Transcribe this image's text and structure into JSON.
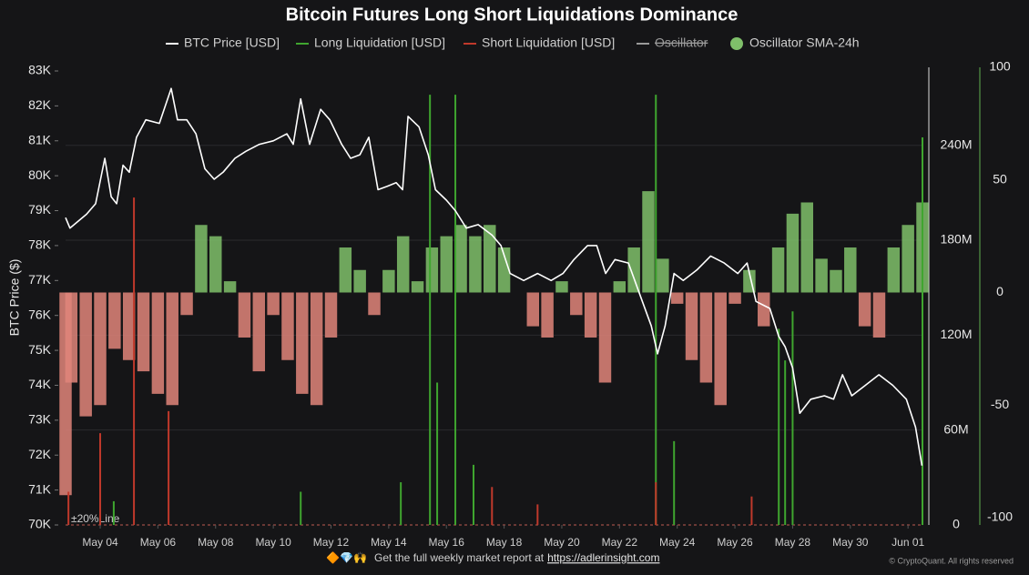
{
  "chart_data": {
    "type": "combo",
    "title": "Bitcoin Futures Long Short Liquidations Dominance",
    "y_label": "BTC Price ($)",
    "line_label": "±20%Line",
    "grid": true,
    "xlim": [
      2.8,
      32.5
    ],
    "xticks": [
      {
        "value": 4,
        "label": "May 04"
      },
      {
        "value": 6,
        "label": "May 06"
      },
      {
        "value": 8,
        "label": "May 08"
      },
      {
        "value": 10,
        "label": "May 10"
      },
      {
        "value": 12,
        "label": "May 12"
      },
      {
        "value": 14,
        "label": "May 14"
      },
      {
        "value": 16,
        "label": "May 16"
      },
      {
        "value": 18,
        "label": "May 18"
      },
      {
        "value": 20,
        "label": "May 20"
      },
      {
        "value": 22,
        "label": "May 22"
      },
      {
        "value": 24,
        "label": "May 24"
      },
      {
        "value": 26,
        "label": "May 26"
      },
      {
        "value": 28,
        "label": "May 28"
      },
      {
        "value": 30,
        "label": "May 30"
      },
      {
        "value": 32,
        "label": "Jun 01"
      }
    ],
    "ylim": [
      70000,
      83000
    ],
    "yticks": [
      {
        "value": 70000,
        "label": "70K"
      },
      {
        "value": 71000,
        "label": "71K"
      },
      {
        "value": 72000,
        "label": "72K"
      },
      {
        "value": 73000,
        "label": "73K"
      },
      {
        "value": 74000,
        "label": "74K"
      },
      {
        "value": 75000,
        "label": "75K"
      },
      {
        "value": 76000,
        "label": "76K"
      },
      {
        "value": 77000,
        "label": "77K"
      },
      {
        "value": 78000,
        "label": "78K"
      },
      {
        "value": 79000,
        "label": "79K"
      },
      {
        "value": 80000,
        "label": "80K"
      },
      {
        "value": 81000,
        "label": "81K"
      },
      {
        "value": 82000,
        "label": "82K"
      },
      {
        "value": 83000,
        "label": "83K"
      }
    ],
    "y2lim": [
      0,
      287000000
    ],
    "y2ticks": [
      0,
      {
        "value": 60000000,
        "label": "60M"
      },
      {
        "value": 120000000,
        "label": "120M"
      },
      {
        "value": 180000000,
        "label": "180M"
      },
      {
        "value": 240000000,
        "label": "240M"
      }
    ],
    "y3lim": [
      -100,
      100
    ],
    "y3ticks": [
      -100,
      -50,
      0,
      50,
      100
    ],
    "series": [
      {
        "name": "BTC Price [USD]",
        "type": "line",
        "color": "#ffffff",
        "x": [
          2.8,
          2.95,
          3.53,
          3.84,
          4.16,
          4.38,
          4.57,
          4.79,
          5.01,
          5.26,
          5.58,
          6.05,
          6.46,
          6.68,
          7.0,
          7.32,
          7.63,
          7.95,
          8.26,
          8.67,
          9.05,
          9.52,
          10.0,
          10.47,
          10.69,
          10.95,
          11.26,
          11.64,
          11.96,
          12.37,
          12.68,
          13.0,
          13.31,
          13.63,
          13.95,
          14.26,
          14.48,
          14.67,
          15.05,
          15.37,
          15.62,
          16.0,
          16.31,
          16.69,
          17.1,
          17.58,
          17.89,
          18.21,
          18.68,
          19.16,
          19.63,
          20.04,
          20.42,
          20.89,
          21.21,
          21.52,
          21.84,
          22.31,
          22.79,
          23.1,
          23.32,
          23.58,
          23.89,
          24.21,
          24.68,
          25.16,
          25.63,
          26.1,
          26.42,
          26.73,
          27.21,
          27.52,
          27.74,
          28.0,
          28.25,
          28.63,
          29.1,
          29.42,
          29.73,
          30.05,
          30.52,
          30.99,
          31.47,
          31.94,
          32.26,
          32.48
        ],
        "values": [
          78800,
          78500,
          78900,
          79200,
          80500,
          79400,
          79200,
          80300,
          80100,
          81100,
          81600,
          81500,
          82500,
          81600,
          81600,
          81200,
          80200,
          79900,
          80100,
          80500,
          80700,
          80900,
          81000,
          81200,
          80900,
          82200,
          80900,
          81900,
          81600,
          80900,
          80500,
          80600,
          81100,
          79600,
          79700,
          79800,
          79600,
          81700,
          81400,
          80600,
          79600,
          79300,
          79000,
          78500,
          78600,
          78300,
          78000,
          77200,
          77000,
          77200,
          77000,
          77200,
          77600,
          78000,
          78000,
          77200,
          77600,
          77500,
          76400,
          75700,
          74900,
          75700,
          77200,
          77000,
          77300,
          77700,
          77500,
          77200,
          77500,
          76400,
          76200,
          75400,
          75100,
          74500,
          73200,
          73600,
          73700,
          73600,
          74300,
          73700,
          74000,
          74300,
          74000,
          73600,
          72800,
          71700
        ]
      },
      {
        "name": "Long Liquidation [USD]",
        "type": "spike",
        "axis": "y2",
        "color": "#3fa52f",
        "x": [
          4.47,
          10.95,
          14.42,
          15.43,
          15.68,
          16.31,
          16.94,
          23.26,
          23.89,
          27.52,
          27.74,
          28.0,
          32.5
        ],
        "values": [
          15000000,
          21000000,
          27000000,
          272000000,
          90000000,
          272000000,
          38000000,
          272000000,
          53000000,
          124000000,
          104000000,
          135000000,
          245000000
        ]
      },
      {
        "name": "Short Liquidation [USD]",
        "type": "spike",
        "axis": "y2",
        "color": "#c0392b",
        "x": [
          2.9,
          4.0,
          5.17,
          6.37,
          17.58,
          19.16,
          23.26,
          26.58
        ],
        "values": [
          21000000,
          58000000,
          207000000,
          72000000,
          24000000,
          13000000,
          27000000,
          18000000
        ]
      },
      {
        "name": "Oscillator",
        "type": "hidden",
        "color": "#9a9a9a"
      },
      {
        "name": "Oscillator SMA-24h",
        "type": "bar",
        "axis": "y3",
        "color": "#7fbf6a",
        "negative_color": "#e0857a",
        "x": [
          2.8,
          3.0,
          3.5,
          4.0,
          4.5,
          5.0,
          5.5,
          6.0,
          6.5,
          7.0,
          7.5,
          8.0,
          8.5,
          9.0,
          9.5,
          10.0,
          10.5,
          11.0,
          11.5,
          12.0,
          12.5,
          13.0,
          13.5,
          14.0,
          14.5,
          15.0,
          15.5,
          16.0,
          16.5,
          17.0,
          17.5,
          18.0,
          18.5,
          19.0,
          19.5,
          20.0,
          20.5,
          21.0,
          21.5,
          22.0,
          22.5,
          23.0,
          23.5,
          24.0,
          24.5,
          25.0,
          25.5,
          26.0,
          26.5,
          27.0,
          27.5,
          28.0,
          28.5,
          29.0,
          29.5,
          30.0,
          30.5,
          31.0,
          31.5,
          32.0,
          32.5
        ],
        "values": [
          -90,
          -40,
          -55,
          -50,
          -25,
          -30,
          -35,
          -45,
          -50,
          -10,
          30,
          25,
          5,
          -20,
          -35,
          -10,
          -30,
          -45,
          -50,
          -20,
          20,
          10,
          -10,
          10,
          25,
          5,
          20,
          25,
          30,
          25,
          30,
          20,
          0,
          -15,
          -20,
          5,
          -10,
          -20,
          -40,
          5,
          20,
          45,
          15,
          -5,
          -30,
          -40,
          -50,
          -5,
          10,
          -15,
          20,
          35,
          40,
          15,
          10,
          20,
          -15,
          -20,
          20,
          30,
          40
        ]
      }
    ]
  },
  "footer": {
    "emoji": "🔶💎🙌",
    "text": "Get the full weekly market report at",
    "link": "https://adlerinsight.com",
    "copyright": "© CryptoQuant. All rights reserved"
  }
}
